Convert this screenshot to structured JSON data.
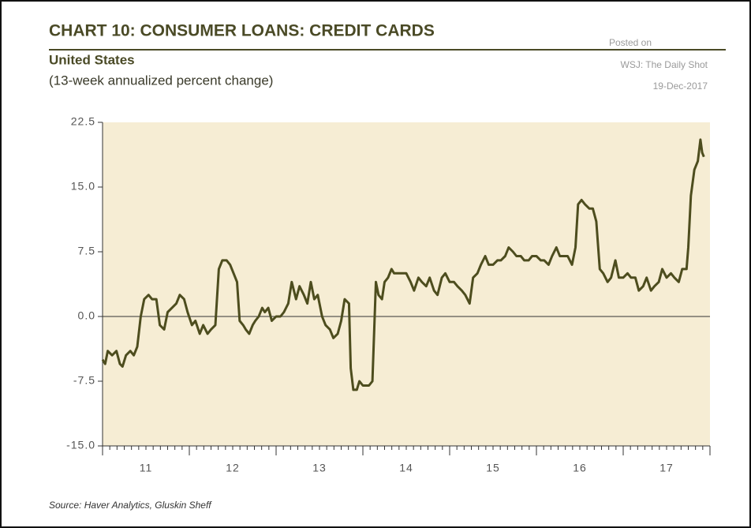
{
  "chart_data": {
    "type": "line",
    "title": "CHART 10: CONSUMER LOANS: CREDIT CARDS",
    "subtitle": "United States",
    "note": "(13-week annualized percent change)",
    "annotations": [
      "Posted on",
      "WSJ: The Daily Shot",
      "19-Dec-2017"
    ],
    "source": "Source: Haver Analytics, Gluskin Sheff",
    "xlim": [
      2011,
      2018
    ],
    "xticks": [
      {
        "value": 2011.5,
        "label": "11"
      },
      {
        "value": 2012.5,
        "label": "12"
      },
      {
        "value": 2013.5,
        "label": "13"
      },
      {
        "value": 2014.5,
        "label": "14"
      },
      {
        "value": 2015.5,
        "label": "15"
      },
      {
        "value": 2016.5,
        "label": "16"
      },
      {
        "value": 2017.5,
        "label": "17"
      }
    ],
    "ylim": [
      -15,
      22.5
    ],
    "yticks": [
      22.5,
      {
        "value": 15,
        "label": "15.0"
      },
      7.5,
      {
        "value": 0,
        "label": "0.0"
      },
      -7.5,
      {
        "value": -15,
        "label": "-15.0"
      }
    ],
    "zero_line": true,
    "background": "#f6edd4",
    "series": [
      {
        "color": "#4d4d1e",
        "x": [
          2011.0,
          2011.03,
          2011.06,
          2011.11,
          2011.16,
          2011.2,
          2011.23,
          2011.27,
          2011.32,
          2011.36,
          2011.4,
          2011.44,
          2011.48,
          2011.53,
          2011.57,
          2011.62,
          2011.66,
          2011.71,
          2011.75,
          2011.8,
          2011.85,
          2011.89,
          2011.94,
          2011.98,
          2012.03,
          2012.07,
          2012.12,
          2012.16,
          2012.21,
          2012.25,
          2012.3,
          2012.34,
          2012.38,
          2012.43,
          2012.47,
          2012.51,
          2012.55,
          2012.58,
          2012.62,
          2012.65,
          2012.69,
          2012.73,
          2012.76,
          2012.8,
          2012.84,
          2012.87,
          2012.91,
          2012.95,
          2013.0,
          2013.05,
          2013.09,
          2013.14,
          2013.18,
          2013.23,
          2013.27,
          2013.32,
          2013.36,
          2013.4,
          2013.44,
          2013.48,
          2013.53,
          2013.57,
          2013.62,
          2013.66,
          2013.71,
          2013.75,
          2013.79,
          2013.84,
          2013.86,
          2013.89,
          2013.93,
          2013.96,
          2014.0,
          2014.04,
          2014.07,
          2014.11,
          2014.15,
          2014.18,
          2014.22,
          2014.25,
          2014.29,
          2014.33,
          2014.36,
          2014.41,
          2014.45,
          2014.5,
          2014.55,
          2014.59,
          2014.64,
          2014.68,
          2014.73,
          2014.77,
          2014.82,
          2014.86,
          2014.91,
          2014.95,
          2015.0,
          2015.05,
          2015.09,
          2015.14,
          2015.18,
          2015.23,
          2015.27,
          2015.32,
          2015.36,
          2015.41,
          2015.45,
          2015.5,
          2015.55,
          2015.59,
          2015.64,
          2015.68,
          2015.73,
          2015.77,
          2015.82,
          2015.86,
          2015.91,
          2015.95,
          2016.0,
          2016.05,
          2016.09,
          2016.14,
          2016.18,
          2016.23,
          2016.27,
          2016.32,
          2016.36,
          2016.41,
          2016.45,
          2016.48,
          2016.52,
          2016.56,
          2016.61,
          2016.65,
          2016.69,
          2016.73,
          2016.77,
          2016.82,
          2016.86,
          2016.91,
          2016.95,
          2017.0,
          2017.05,
          2017.09,
          2017.14,
          2017.18,
          2017.23,
          2017.27,
          2017.32,
          2017.36,
          2017.41,
          2017.45,
          2017.5,
          2017.55,
          2017.59,
          2017.64,
          2017.68,
          2017.73,
          2017.75,
          2017.78,
          2017.82,
          2017.86,
          2017.89,
          2017.91,
          2017.93
        ],
        "values": [
          -5,
          -5.5,
          -4,
          -4.5,
          -4,
          -5.5,
          -5.8,
          -4.5,
          -4,
          -4.5,
          -3.5,
          0,
          2,
          2.5,
          2,
          2,
          -1,
          -1.5,
          0.5,
          1,
          1.5,
          2.5,
          2,
          0.5,
          -1,
          -0.5,
          -2,
          -1,
          -2,
          -1.5,
          -1,
          5.5,
          6.5,
          6.5,
          6,
          5,
          4,
          -0.5,
          -1,
          -1.5,
          -2,
          -1,
          -0.5,
          0,
          1,
          0.5,
          1,
          -0.5,
          0,
          0,
          0.5,
          1.5,
          4,
          2,
          3.5,
          2.5,
          1.5,
          4,
          2,
          2.5,
          0,
          -1,
          -1.5,
          -2.5,
          -2,
          -0.5,
          2,
          1.5,
          -6,
          -8.5,
          -8.5,
          -7.5,
          -8,
          -8,
          -8,
          -7.5,
          4,
          2.5,
          2,
          4,
          4.5,
          5.5,
          5,
          5,
          5,
          5,
          4,
          3,
          4.5,
          4,
          3.5,
          4.5,
          3,
          2.5,
          4.5,
          5,
          4,
          4,
          3.5,
          3,
          2.5,
          1.5,
          4.5,
          5,
          6,
          7,
          6,
          6,
          6.5,
          6.5,
          7,
          8,
          7.5,
          7,
          7,
          6.5,
          6.5,
          7,
          7,
          6.5,
          6.5,
          6,
          7,
          8,
          7,
          7,
          7,
          6,
          8,
          13,
          13.5,
          13,
          12.5,
          12.5,
          11,
          5.5,
          5,
          4,
          4.5,
          6.5,
          4.5,
          4.5,
          5,
          4.5,
          4.5,
          3,
          3.5,
          4.5,
          3,
          3.5,
          4,
          5.5,
          4.5,
          5,
          4.5,
          4,
          5.5,
          5.5,
          8,
          14,
          17,
          18,
          20.5,
          19,
          18.5
        ]
      }
    ]
  }
}
